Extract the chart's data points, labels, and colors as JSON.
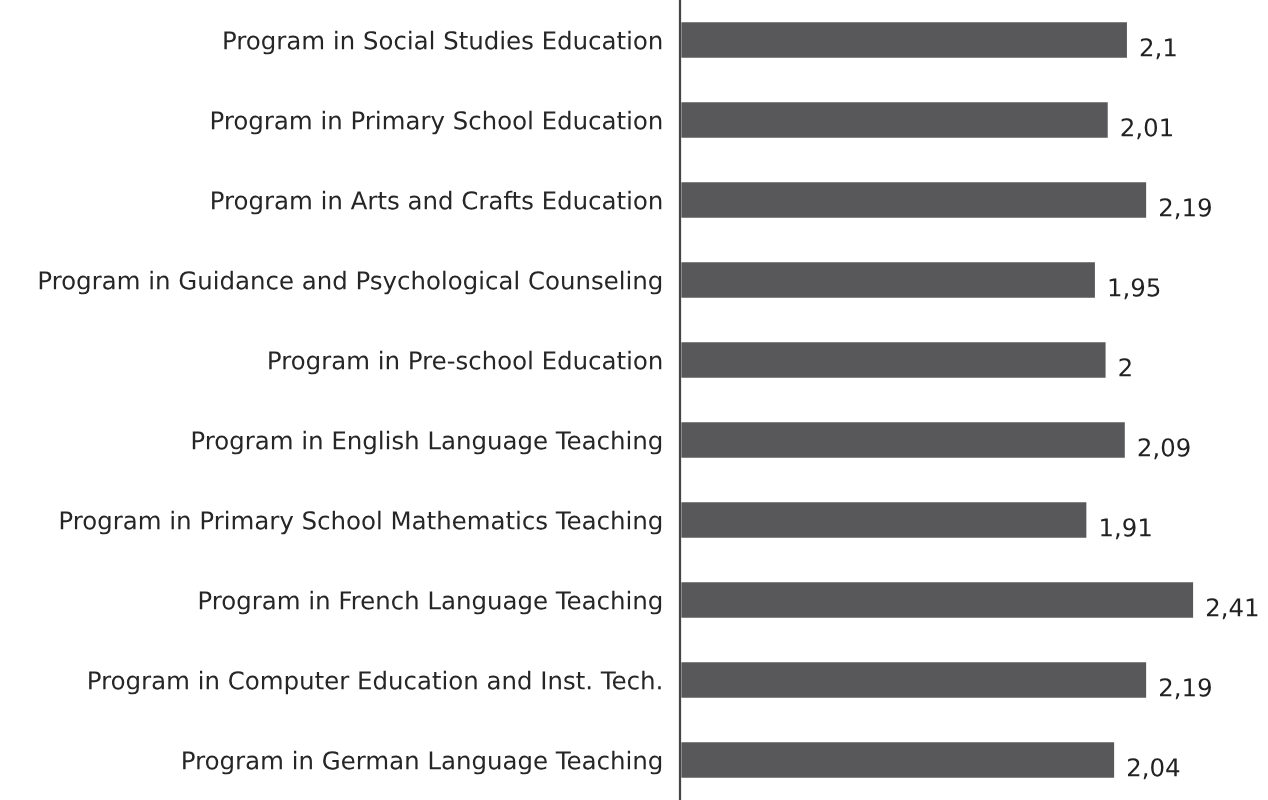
{
  "chart_data": {
    "type": "bar",
    "orientation": "horizontal",
    "categories": [
      "Program in Social Studies Education",
      "Program in Primary School Education",
      "Program in Arts and Crafts Education",
      "Program in Guidance and Psychological Counseling",
      "Program in Pre-school Education",
      "Program in English Language Teaching",
      "Program in Primary School Mathematics Teaching",
      "Program in French Language Teaching",
      "Program in Computer Education and Inst. Tech.",
      "Program in German Language Teaching"
    ],
    "values": [
      2.1,
      2.01,
      2.19,
      1.95,
      2,
      2.09,
      1.91,
      2.41,
      2.19,
      2.04
    ],
    "value_labels": [
      "2,1",
      "2,01",
      "2,19",
      "1,95",
      "2",
      "2,09",
      "1,91",
      "2,41",
      "2,19",
      "2,04"
    ],
    "color": "#58585a",
    "tick_labels": "y",
    "grid": false,
    "legend": false
  }
}
